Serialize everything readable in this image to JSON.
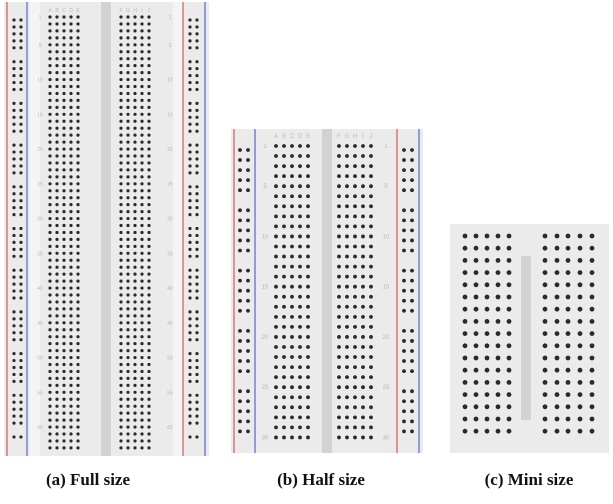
{
  "boards": [
    {
      "id": "full",
      "caption": "(a) Full size",
      "rows": 63,
      "row_numbers": [
        "1",
        "5",
        "10",
        "15",
        "20",
        "25",
        "30",
        "35",
        "40",
        "45",
        "50",
        "55",
        "60"
      ],
      "column_letters_left": [
        "A",
        "B",
        "C",
        "D",
        "E"
      ],
      "column_letters_right": [
        "F",
        "G",
        "H",
        "I",
        "J"
      ],
      "power_rails": true
    },
    {
      "id": "half",
      "caption": "(b) Half size",
      "rows": 30,
      "row_numbers": [
        "1",
        "5",
        "10",
        "15",
        "20",
        "25",
        "30"
      ],
      "column_letters_left": [
        "A",
        "B",
        "C",
        "D",
        "E"
      ],
      "column_letters_right": [
        "F",
        "G",
        "H",
        "I",
        "J"
      ],
      "power_rails": true
    },
    {
      "id": "mini",
      "caption": "(c) Mini size",
      "rows": 17,
      "row_numbers": [],
      "column_letters_left": [],
      "column_letters_right": [],
      "power_rails": false
    }
  ],
  "colors": {
    "board": "#ebebeb",
    "hole": "#2a2a2a",
    "label": "#b9b9b9",
    "red_rail": "#d33a3a",
    "blue_rail": "#3b48c4",
    "channel": "#d2d2d2"
  }
}
